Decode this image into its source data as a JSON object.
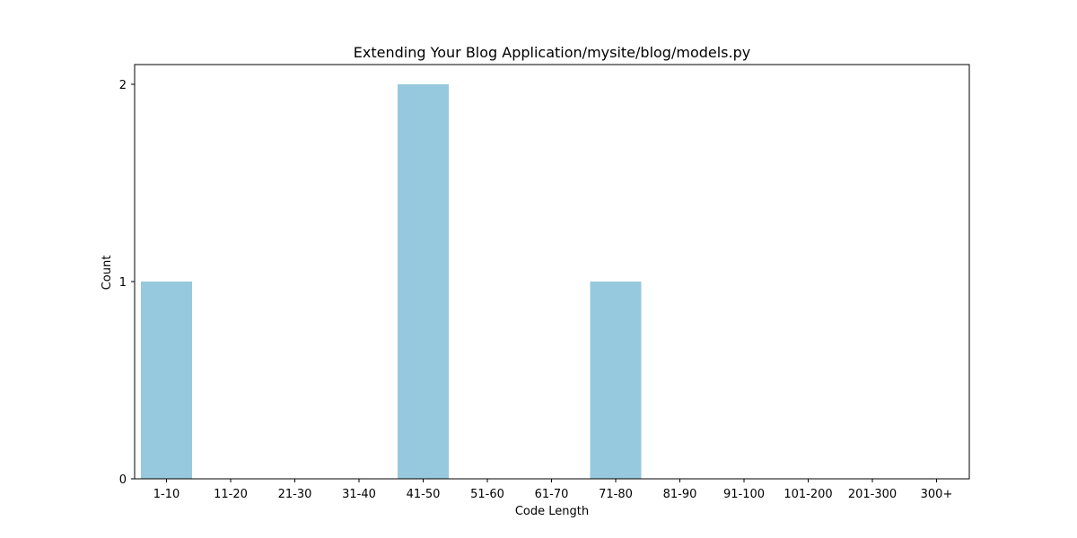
{
  "chart_data": {
    "type": "bar",
    "title": "Extending Your Blog Application/mysite/blog/models.py",
    "xlabel": "Code Length",
    "ylabel": "Count",
    "categories": [
      "1-10",
      "11-20",
      "21-30",
      "31-40",
      "41-50",
      "51-60",
      "61-70",
      "71-80",
      "81-90",
      "91-100",
      "101-200",
      "201-300",
      "300+"
    ],
    "values": [
      1,
      0,
      0,
      0,
      2,
      0,
      0,
      1,
      0,
      0,
      0,
      0,
      0
    ],
    "ylim": [
      0,
      2.1
    ],
    "yticks": [
      0,
      1,
      2
    ],
    "grid": false,
    "bar_color": "#96c9dd"
  }
}
